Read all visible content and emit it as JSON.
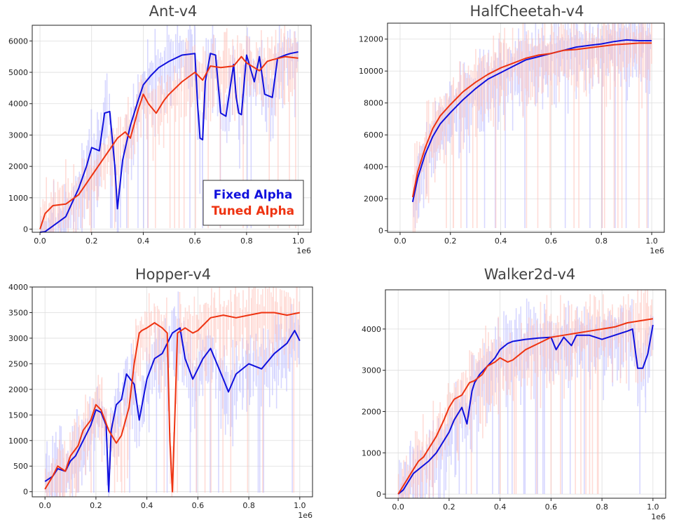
{
  "colors": {
    "fixed": "#1010dd",
    "tuned": "#ee3311",
    "fixed_band": "#b8b8ff",
    "tuned_band": "#ffc0b8"
  },
  "legend": {
    "fixed": "Fixed Alpha",
    "tuned": "Tuned Alpha"
  },
  "chart_data": [
    {
      "type": "line",
      "title": "Ant-v4",
      "xlabel": "",
      "ylabel": "",
      "x_multiplier_label": "1e6",
      "xlim": [
        -0.03,
        1.05
      ],
      "ylim": [
        -100,
        6500
      ],
      "xticks": [
        0.0,
        0.2,
        0.4,
        0.6,
        0.8,
        1.0
      ],
      "xtick_labels": [
        "0.0",
        "0.2",
        "0.4",
        "0.6",
        "0.8",
        "1.0"
      ],
      "yticks": [
        0,
        1000,
        2000,
        3000,
        4000,
        5000,
        6000
      ],
      "ytick_labels": [
        "0",
        "1000",
        "2000",
        "3000",
        "4000",
        "5000",
        "6000"
      ],
      "grid": true,
      "legend_position": "lower-right",
      "series": [
        {
          "name": "Fixed Alpha",
          "x": [
            0.0,
            0.02,
            0.05,
            0.1,
            0.15,
            0.18,
            0.2,
            0.23,
            0.25,
            0.27,
            0.29,
            0.3,
            0.32,
            0.35,
            0.38,
            0.4,
            0.43,
            0.46,
            0.5,
            0.55,
            0.6,
            0.61,
            0.62,
            0.63,
            0.64,
            0.66,
            0.68,
            0.7,
            0.72,
            0.75,
            0.76,
            0.77,
            0.78,
            0.8,
            0.83,
            0.85,
            0.87,
            0.9,
            0.92,
            0.95,
            0.97,
            1.0
          ],
          "values": [
            -100,
            -80,
            100,
            400,
            1300,
            2000,
            2600,
            2500,
            3700,
            3750,
            2000,
            650,
            2200,
            3300,
            4100,
            4600,
            4900,
            5150,
            5350,
            5550,
            5600,
            4000,
            2900,
            2850,
            4700,
            5600,
            5550,
            3700,
            3600,
            5250,
            4200,
            3700,
            3650,
            5550,
            4700,
            5500,
            4300,
            4200,
            5450,
            5550,
            5600,
            5650
          ]
        },
        {
          "name": "Tuned Alpha",
          "x": [
            0.0,
            0.02,
            0.05,
            0.1,
            0.15,
            0.2,
            0.25,
            0.3,
            0.33,
            0.35,
            0.38,
            0.4,
            0.42,
            0.45,
            0.48,
            0.5,
            0.55,
            0.6,
            0.63,
            0.66,
            0.7,
            0.75,
            0.78,
            0.8,
            0.85,
            0.88,
            0.9,
            0.95,
            1.0
          ],
          "values": [
            0,
            500,
            750,
            800,
            1100,
            1700,
            2300,
            2900,
            3100,
            2900,
            3800,
            4300,
            4000,
            3700,
            4100,
            4300,
            4700,
            5000,
            4750,
            5200,
            5150,
            5200,
            5500,
            5300,
            5050,
            5350,
            5400,
            5500,
            5450
          ]
        }
      ]
    },
    {
      "type": "line",
      "title": "HalfCheetah-v4",
      "xlabel": "",
      "ylabel": "",
      "x_multiplier_label": "1e6",
      "xlim": [
        -0.05,
        1.05
      ],
      "ylim": [
        -100,
        13000
      ],
      "xticks": [
        0.0,
        0.2,
        0.4,
        0.6,
        0.8,
        1.0
      ],
      "xtick_labels": [
        "0.0",
        "0.2",
        "0.4",
        "0.6",
        "0.8",
        "1.0"
      ],
      "yticks": [
        0,
        2000,
        4000,
        6000,
        8000,
        10000,
        12000
      ],
      "ytick_labels": [
        "0",
        "2000",
        "4000",
        "6000",
        "8000",
        "10000",
        "12000"
      ],
      "grid": true,
      "series": [
        {
          "name": "Fixed Alpha",
          "x": [
            0.05,
            0.07,
            0.1,
            0.13,
            0.16,
            0.2,
            0.25,
            0.3,
            0.35,
            0.4,
            0.45,
            0.5,
            0.55,
            0.6,
            0.65,
            0.7,
            0.75,
            0.8,
            0.85,
            0.9,
            0.95,
            1.0
          ],
          "values": [
            1800,
            3300,
            4800,
            5900,
            6700,
            7400,
            8200,
            8900,
            9500,
            9900,
            10300,
            10700,
            10900,
            11100,
            11300,
            11500,
            11600,
            11700,
            11850,
            11950,
            11900,
            11900
          ]
        },
        {
          "name": "Tuned Alpha",
          "x": [
            0.05,
            0.07,
            0.1,
            0.13,
            0.16,
            0.2,
            0.25,
            0.3,
            0.35,
            0.4,
            0.45,
            0.5,
            0.55,
            0.6,
            0.65,
            0.7,
            0.75,
            0.8,
            0.85,
            0.9,
            0.95,
            1.0
          ],
          "values": [
            2100,
            3700,
            5200,
            6400,
            7200,
            7900,
            8700,
            9300,
            9800,
            10200,
            10500,
            10800,
            11000,
            11100,
            11300,
            11350,
            11450,
            11550,
            11650,
            11700,
            11750,
            11750
          ]
        }
      ]
    },
    {
      "type": "line",
      "title": "Hopper-v4",
      "xlabel": "",
      "ylabel": "",
      "x_multiplier_label": "1e6",
      "xlim": [
        -0.05,
        1.05
      ],
      "ylim": [
        -100,
        4000
      ],
      "xticks": [
        0.0,
        0.2,
        0.4,
        0.6,
        0.8,
        1.0
      ],
      "xtick_labels": [
        "0.0",
        "0.2",
        "0.4",
        "0.6",
        "0.8",
        "1.0"
      ],
      "yticks": [
        0,
        500,
        1000,
        1500,
        2000,
        2500,
        3000,
        3500,
        4000
      ],
      "ytick_labels": [
        "0",
        "500",
        "1000",
        "1500",
        "2000",
        "2500",
        "3000",
        "3500",
        "4000"
      ],
      "grid": true,
      "series": [
        {
          "name": "Fixed Alpha",
          "x": [
            0.0,
            0.03,
            0.05,
            0.08,
            0.1,
            0.12,
            0.15,
            0.18,
            0.2,
            0.22,
            0.24,
            0.25,
            0.26,
            0.28,
            0.3,
            0.32,
            0.35,
            0.37,
            0.4,
            0.43,
            0.46,
            0.5,
            0.53,
            0.55,
            0.58,
            0.6,
            0.62,
            0.65,
            0.7,
            0.72,
            0.75,
            0.8,
            0.85,
            0.9,
            0.95,
            0.98,
            1.0
          ],
          "values": [
            200,
            300,
            450,
            400,
            600,
            700,
            1000,
            1300,
            1600,
            1550,
            1300,
            0,
            1200,
            1700,
            1800,
            2300,
            2100,
            1400,
            2200,
            2600,
            2700,
            3100,
            3200,
            2600,
            2200,
            2400,
            2600,
            2800,
            2200,
            1950,
            2300,
            2500,
            2400,
            2700,
            2900,
            3150,
            2950
          ]
        },
        {
          "name": "Tuned Alpha",
          "x": [
            0.0,
            0.03,
            0.05,
            0.08,
            0.1,
            0.13,
            0.15,
            0.18,
            0.2,
            0.22,
            0.25,
            0.28,
            0.3,
            0.33,
            0.35,
            0.37,
            0.38,
            0.4,
            0.43,
            0.46,
            0.48,
            0.49,
            0.5,
            0.51,
            0.52,
            0.55,
            0.58,
            0.6,
            0.65,
            0.7,
            0.75,
            0.8,
            0.85,
            0.9,
            0.95,
            1.0
          ],
          "values": [
            50,
            300,
            500,
            400,
            700,
            900,
            1200,
            1400,
            1700,
            1600,
            1200,
            950,
            1100,
            1650,
            2500,
            3100,
            3150,
            3200,
            3300,
            3200,
            3100,
            1000,
            0,
            1500,
            3100,
            3200,
            3100,
            3150,
            3400,
            3450,
            3400,
            3450,
            3500,
            3500,
            3450,
            3500
          ]
        }
      ]
    },
    {
      "type": "line",
      "title": "Walker2d-v4",
      "xlabel": "",
      "ylabel": "",
      "x_multiplier_label": "1e6",
      "xlim": [
        -0.05,
        1.05
      ],
      "ylim": [
        -100,
        4950
      ],
      "xticks": [
        0.0,
        0.2,
        0.4,
        0.6,
        0.8,
        1.0
      ],
      "xtick_labels": [
        "0.0",
        "0.2",
        "0.4",
        "0.6",
        "0.8",
        "1.0"
      ],
      "yticks": [
        0,
        1000,
        2000,
        3000,
        4000
      ],
      "ytick_labels": [
        "0",
        "1000",
        "2000",
        "3000",
        "4000"
      ],
      "grid": true,
      "series": [
        {
          "name": "Fixed Alpha",
          "x": [
            0.0,
            0.02,
            0.04,
            0.06,
            0.08,
            0.1,
            0.12,
            0.15,
            0.18,
            0.2,
            0.22,
            0.25,
            0.27,
            0.29,
            0.3,
            0.32,
            0.35,
            0.38,
            0.4,
            0.43,
            0.45,
            0.5,
            0.55,
            0.6,
            0.62,
            0.65,
            0.68,
            0.7,
            0.75,
            0.8,
            0.85,
            0.9,
            0.92,
            0.94,
            0.96,
            0.98,
            1.0
          ],
          "values": [
            0,
            100,
            300,
            500,
            600,
            700,
            800,
            1000,
            1300,
            1500,
            1800,
            2100,
            1700,
            2500,
            2700,
            2900,
            3100,
            3300,
            3500,
            3650,
            3700,
            3750,
            3780,
            3800,
            3500,
            3800,
            3600,
            3850,
            3850,
            3750,
            3850,
            3950,
            4000,
            3050,
            3050,
            3400,
            4100
          ]
        },
        {
          "name": "Tuned Alpha",
          "x": [
            0.0,
            0.02,
            0.04,
            0.06,
            0.08,
            0.1,
            0.12,
            0.15,
            0.18,
            0.2,
            0.22,
            0.25,
            0.28,
            0.3,
            0.33,
            0.35,
            0.38,
            0.4,
            0.43,
            0.45,
            0.5,
            0.55,
            0.6,
            0.65,
            0.7,
            0.75,
            0.8,
            0.85,
            0.9,
            0.95,
            1.0
          ],
          "values": [
            0,
            200,
            400,
            600,
            800,
            900,
            1100,
            1400,
            1800,
            2100,
            2300,
            2400,
            2700,
            2750,
            2900,
            3100,
            3200,
            3300,
            3200,
            3250,
            3500,
            3650,
            3800,
            3850,
            3900,
            3950,
            4000,
            4050,
            4150,
            4200,
            4250
          ]
        }
      ]
    }
  ]
}
